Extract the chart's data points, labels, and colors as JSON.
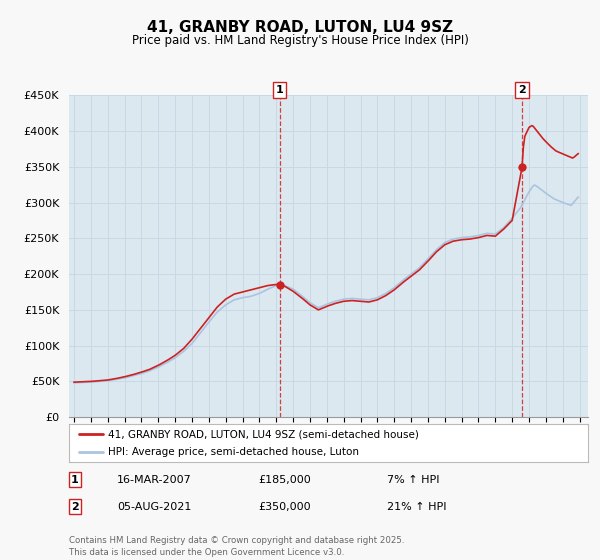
{
  "title": "41, GRANBY ROAD, LUTON, LU4 9SZ",
  "subtitle": "Price paid vs. HM Land Registry's House Price Index (HPI)",
  "ylabel_ticks": [
    "£0",
    "£50K",
    "£100K",
    "£150K",
    "£200K",
    "£250K",
    "£300K",
    "£350K",
    "£400K",
    "£450K"
  ],
  "ylim": [
    0,
    450000
  ],
  "xlim_start": 1994.7,
  "xlim_end": 2025.5,
  "hpi_color": "#aac4e0",
  "price_color": "#cc2222",
  "marker1_x": 2007.21,
  "marker1_y": 185000,
  "marker1_label": "1",
  "marker2_x": 2021.59,
  "marker2_y": 350000,
  "marker2_label": "2",
  "legend_line1": "41, GRANBY ROAD, LUTON, LU4 9SZ (semi-detached house)",
  "legend_line2": "HPI: Average price, semi-detached house, Luton",
  "annotation1_date": "16-MAR-2007",
  "annotation1_price": "£185,000",
  "annotation1_hpi": "7% ↑ HPI",
  "annotation2_date": "05-AUG-2021",
  "annotation2_price": "£350,000",
  "annotation2_hpi": "21% ↑ HPI",
  "footer": "Contains HM Land Registry data © Crown copyright and database right 2025.\nThis data is licensed under the Open Government Licence v3.0.",
  "background_color": "#f8f8f8",
  "plot_bg_color": "#dce8f0"
}
